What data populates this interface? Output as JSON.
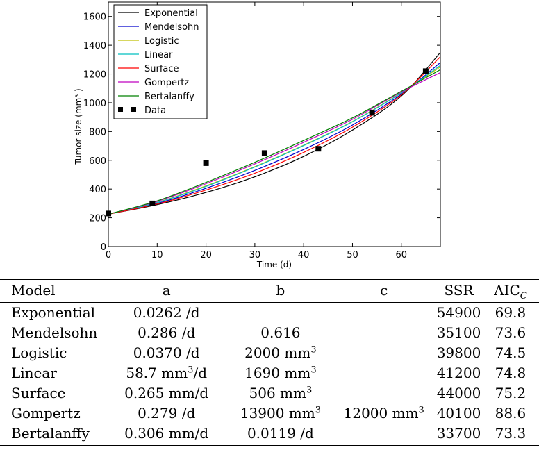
{
  "chart_data": {
    "type": "line",
    "xlabel": "Time (d)",
    "ylabel": "Tumor size (mm³ )",
    "xlim": [
      0,
      68
    ],
    "ylim": [
      0,
      1700
    ],
    "xticks": [
      0,
      10,
      20,
      30,
      40,
      50,
      60
    ],
    "yticks": [
      0,
      200,
      400,
      600,
      800,
      1000,
      1200,
      1400,
      1600
    ],
    "grid": false,
    "legend_position": "top-left",
    "series": [
      {
        "name": "Exponential",
        "color": "#000000",
        "x": [
          0,
          10,
          20,
          30,
          40,
          50,
          60,
          68
        ],
        "y": [
          225,
          291,
          376,
          485,
          627,
          810,
          1047,
          1350
        ]
      },
      {
        "name": "Mendelsohn",
        "color": "#0000cc",
        "x": [
          0,
          10,
          20,
          30,
          40,
          50,
          60,
          68
        ],
        "y": [
          225,
          300,
          405,
          530,
          675,
          845,
          1060,
          1280
        ]
      },
      {
        "name": "Logistic",
        "color": "#bfbf00",
        "x": [
          0,
          10,
          20,
          30,
          40,
          50,
          60,
          68
        ],
        "y": [
          225,
          307,
          422,
          556,
          705,
          870,
          1070,
          1250
        ]
      },
      {
        "name": "Linear",
        "color": "#00bfbf",
        "x": [
          0,
          10,
          20,
          30,
          40,
          50,
          60,
          68
        ],
        "y": [
          225,
          306,
          418,
          553,
          702,
          868,
          1068,
          1260
        ]
      },
      {
        "name": "Surface",
        "color": "#ff0000",
        "x": [
          0,
          10,
          20,
          30,
          40,
          50,
          60,
          68
        ],
        "y": [
          225,
          296,
          393,
          510,
          655,
          830,
          1055,
          1320
        ]
      },
      {
        "name": "Gompertz",
        "color": "#bf00bf",
        "x": [
          0,
          10,
          20,
          30,
          40,
          50,
          60,
          68
        ],
        "y": [
          225,
          314,
          437,
          575,
          725,
          885,
          1075,
          1210
        ]
      },
      {
        "name": "Bertalanffy",
        "color": "#008000",
        "x": [
          0,
          10,
          20,
          30,
          40,
          50,
          60,
          68
        ],
        "y": [
          225,
          318,
          446,
          586,
          738,
          895,
          1080,
          1230
        ]
      }
    ],
    "data_points": {
      "name": "Data",
      "x": [
        0,
        9,
        20,
        32,
        43,
        54,
        65
      ],
      "y": [
        230,
        300,
        580,
        650,
        680,
        930,
        1220
      ]
    }
  },
  "table": {
    "headers": {
      "model": "Model",
      "a": "a",
      "b": "b",
      "c": "c",
      "ssr": "SSR",
      "aic_main": "AIC",
      "aic_sub": "C"
    },
    "rows": [
      {
        "model": "Exponential",
        "a": "0.0262 /d",
        "a_sup": "",
        "a_post": "",
        "b": "",
        "b_sup": "",
        "c": "",
        "c_sup": "",
        "ssr": "54900",
        "aic": "69.8"
      },
      {
        "model": "Mendelsohn",
        "a": "0.286 /d",
        "a_sup": "",
        "a_post": "",
        "b": "0.616",
        "b_sup": "",
        "c": "",
        "c_sup": "",
        "ssr": "35100",
        "aic": "73.6"
      },
      {
        "model": "Logistic",
        "a": "0.0370 /d",
        "a_sup": "",
        "a_post": "",
        "b": "2000 mm",
        "b_sup": "3",
        "c": "",
        "c_sup": "",
        "ssr": "39800",
        "aic": "74.5"
      },
      {
        "model": "Linear",
        "a": "58.7 mm",
        "a_sup": "3",
        "a_post": "/d",
        "b": "1690 mm",
        "b_sup": "3",
        "c": "",
        "c_sup": "",
        "ssr": "41200",
        "aic": "74.8"
      },
      {
        "model": "Surface",
        "a": "0.265 mm/d",
        "a_sup": "",
        "a_post": "",
        "b": "506 mm",
        "b_sup": "3",
        "c": "",
        "c_sup": "",
        "ssr": "44000",
        "aic": "75.2"
      },
      {
        "model": "Gompertz",
        "a": "0.279 /d",
        "a_sup": "",
        "a_post": "",
        "b": "13900 mm",
        "b_sup": "3",
        "c": "12000 mm",
        "c_sup": "3",
        "ssr": "40100",
        "aic": "88.6"
      },
      {
        "model": "Bertalanffy",
        "a": "0.306 mm/d",
        "a_sup": "",
        "a_post": "",
        "b": "0.0119 /d",
        "b_sup": "",
        "c": "",
        "c_sup": "",
        "ssr": "33700",
        "aic": "73.3"
      }
    ]
  }
}
